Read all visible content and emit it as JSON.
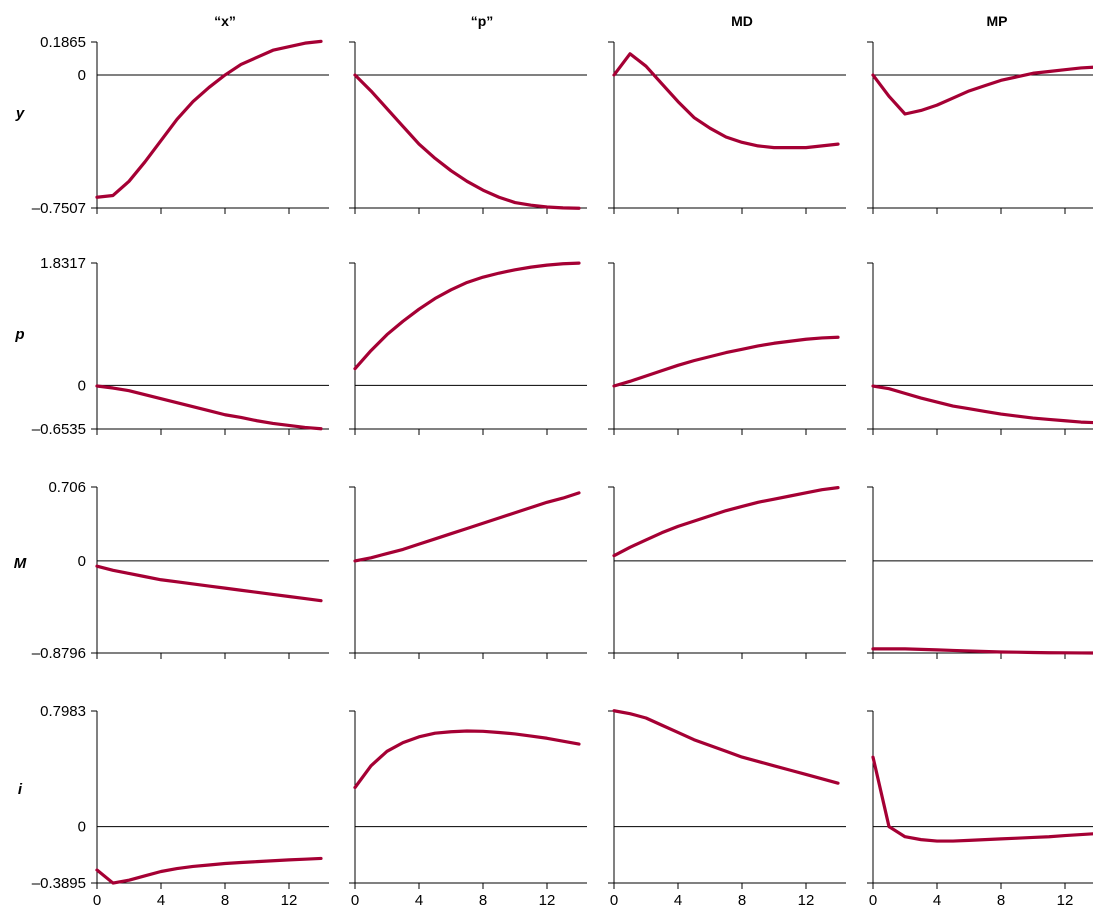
{
  "chart_data": {
    "type": "line",
    "columns": [
      {
        "label": "“x”"
      },
      {
        "label": "“p”"
      },
      {
        "label": "MD"
      },
      {
        "label": "MP"
      }
    ],
    "rows": [
      {
        "label": "y",
        "ymin": -0.7507,
        "ymax": 0.1865,
        "yticks": [
          "0.1865",
          "0",
          "–0.7507"
        ]
      },
      {
        "label": "p",
        "ymin": -0.6535,
        "ymax": 1.8317,
        "yticks": [
          "1.8317",
          "0",
          "–0.6535"
        ]
      },
      {
        "label": "M",
        "ymin": -0.8796,
        "ymax": 0.706,
        "yticks": [
          "0.706",
          "0",
          "–0.8796"
        ]
      },
      {
        "label": "i",
        "ymin": -0.3895,
        "ymax": 0.7983,
        "yticks": [
          "0.7983",
          "0",
          "–0.3895"
        ]
      }
    ],
    "x": [
      0,
      1,
      2,
      3,
      4,
      5,
      6,
      7,
      8,
      9,
      10,
      11,
      12,
      13,
      14
    ],
    "xlim": [
      0,
      14.5
    ],
    "xticks": [
      "0",
      "4",
      "8",
      "12"
    ],
    "xtick_values": [
      0,
      4,
      8,
      12
    ],
    "series_color": "#A50034",
    "panels": [
      [
        [
          -0.69,
          -0.68,
          -0.6,
          -0.49,
          -0.37,
          -0.25,
          -0.15,
          -0.07,
          0.0,
          0.06,
          0.1,
          0.14,
          0.16,
          0.18,
          0.19
        ],
        [
          0.0,
          -0.09,
          -0.19,
          -0.29,
          -0.39,
          -0.47,
          -0.54,
          -0.6,
          -0.65,
          -0.69,
          -0.72,
          -0.735,
          -0.745,
          -0.75,
          -0.752
        ],
        [
          0.0,
          0.12,
          0.05,
          -0.05,
          -0.15,
          -0.24,
          -0.3,
          -0.35,
          -0.38,
          -0.4,
          -0.41,
          -0.41,
          -0.41,
          -0.4,
          -0.39
        ],
        [
          0.0,
          -0.12,
          -0.22,
          -0.2,
          -0.17,
          -0.13,
          -0.09,
          -0.06,
          -0.03,
          -0.01,
          0.01,
          0.02,
          0.03,
          0.04,
          0.045
        ]
      ],
      [
        [
          -0.01,
          -0.04,
          -0.08,
          -0.14,
          -0.2,
          -0.26,
          -0.32,
          -0.38,
          -0.44,
          -0.48,
          -0.53,
          -0.57,
          -0.6,
          -0.63,
          -0.65
        ],
        [
          0.25,
          0.52,
          0.76,
          0.96,
          1.14,
          1.3,
          1.43,
          1.54,
          1.62,
          1.68,
          1.73,
          1.77,
          1.8,
          1.82,
          1.83
        ],
        [
          -0.01,
          0.06,
          0.14,
          0.22,
          0.3,
          0.37,
          0.43,
          0.49,
          0.54,
          0.59,
          0.63,
          0.66,
          0.69,
          0.71,
          0.72
        ],
        [
          -0.01,
          -0.05,
          -0.12,
          -0.19,
          -0.25,
          -0.31,
          -0.35,
          -0.39,
          -0.43,
          -0.46,
          -0.49,
          -0.51,
          -0.53,
          -0.55,
          -0.56
        ]
      ],
      [
        [
          -0.05,
          -0.09,
          -0.12,
          -0.15,
          -0.18,
          -0.2,
          -0.22,
          -0.24,
          -0.26,
          -0.28,
          -0.3,
          -0.32,
          -0.34,
          -0.36,
          -0.38
        ],
        [
          0.0,
          0.03,
          0.07,
          0.11,
          0.16,
          0.21,
          0.26,
          0.31,
          0.36,
          0.41,
          0.46,
          0.51,
          0.56,
          0.6,
          0.65
        ],
        [
          0.05,
          0.13,
          0.2,
          0.27,
          0.33,
          0.38,
          0.43,
          0.48,
          0.52,
          0.56,
          0.59,
          0.62,
          0.65,
          0.68,
          0.7
        ],
        [
          -0.84,
          -0.84,
          -0.84,
          -0.845,
          -0.85,
          -0.855,
          -0.86,
          -0.865,
          -0.87,
          -0.872,
          -0.875,
          -0.877,
          -0.878,
          -0.879,
          -0.88
        ]
      ],
      [
        [
          -0.3,
          -0.39,
          -0.37,
          -0.34,
          -0.31,
          -0.29,
          -0.275,
          -0.265,
          -0.255,
          -0.248,
          -0.242,
          -0.236,
          -0.23,
          -0.225,
          -0.22
        ],
        [
          0.27,
          0.42,
          0.52,
          0.58,
          0.62,
          0.645,
          0.655,
          0.66,
          0.658,
          0.65,
          0.64,
          0.625,
          0.61,
          0.59,
          0.57
        ],
        [
          0.8,
          0.78,
          0.75,
          0.7,
          0.65,
          0.6,
          0.56,
          0.52,
          0.48,
          0.45,
          0.42,
          0.39,
          0.36,
          0.33,
          0.3
        ],
        [
          0.48,
          0.0,
          -0.07,
          -0.09,
          -0.1,
          -0.1,
          -0.095,
          -0.09,
          -0.085,
          -0.08,
          -0.075,
          -0.07,
          -0.062,
          -0.055,
          -0.048
        ]
      ]
    ]
  }
}
